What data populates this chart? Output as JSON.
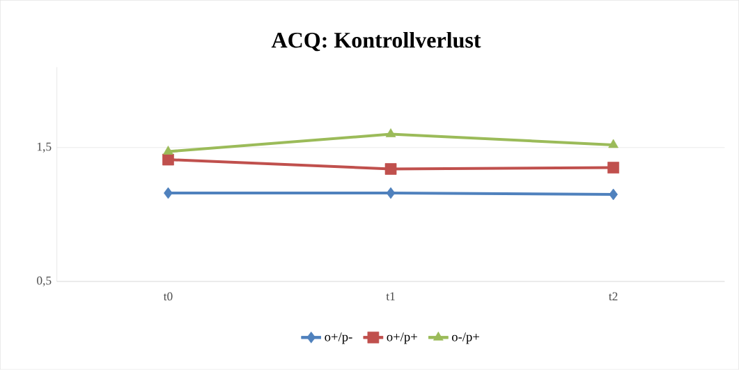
{
  "chart_data": {
    "type": "line",
    "title": "ACQ: Kontrollverlust",
    "categories": [
      "t0",
      "t1",
      "t2"
    ],
    "series": [
      {
        "name": "o+/p-",
        "color": "#4f81bd",
        "marker": "diamond",
        "values": [
          1.16,
          1.16,
          1.15
        ]
      },
      {
        "name": "o+/p+",
        "color": "#c0504d",
        "marker": "square",
        "values": [
          1.41,
          1.34,
          1.35
        ]
      },
      {
        "name": "o-/p+",
        "color": "#9bbb59",
        "marker": "triangle",
        "values": [
          1.47,
          1.6,
          1.52
        ]
      }
    ],
    "ylim": [
      0.5,
      2.1
    ],
    "yticks": [
      {
        "value": 0.5,
        "label": "0,5"
      },
      {
        "value": 1.5,
        "label": "1,5"
      }
    ],
    "grid": "y",
    "legend": "bottom",
    "line_style": "solid"
  }
}
